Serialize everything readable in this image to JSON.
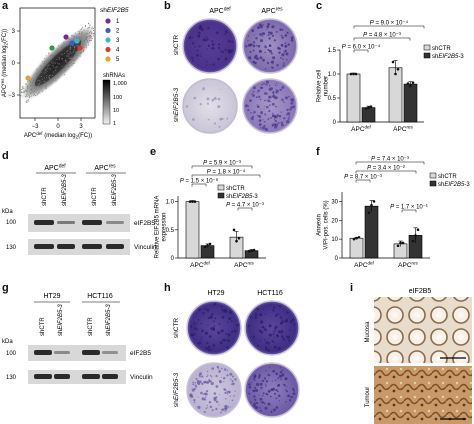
{
  "panels": {
    "a": {
      "label": "a",
      "yaxis": "APC",
      "yaxis_sup": "res",
      "yaxis_rest": " (median log",
      "yaxis_sub": "2",
      "yaxis_end": "(FC))",
      "xaxis": "APC",
      "xaxis_sup": "def",
      "xaxis_rest": " (median log",
      "xaxis_sub": "2",
      "xaxis_end": "(FC))",
      "ticks_x": [
        "−3",
        "0",
        "3"
      ],
      "ticks_y": [
        "−3",
        "0",
        "3"
      ],
      "legend_title_pre": "sh",
      "legend_title_gene": "EIF2B5",
      "legend_items": [
        {
          "label": "1",
          "color": "#7a2a96"
        },
        {
          "label": "2",
          "color": "#3a5fc7"
        },
        {
          "label": "3",
          "color": "#3db6d6"
        },
        {
          "label": "4",
          "color": "#d93b2b"
        },
        {
          "label": "5",
          "color": "#f0a020"
        }
      ],
      "colorbar_title": "shRNAs",
      "colorbar_ticks": [
        "1,000",
        "100",
        "10",
        "1"
      ]
    },
    "b": {
      "label": "b",
      "col1": "APC",
      "col1_sup": "def",
      "col2": "APC",
      "col2_sup": "res",
      "row1": "shCTR",
      "row2_pre": "sh",
      "row2_gene": "EIF2B5-3"
    },
    "c": {
      "label": "c",
      "ylabel": "Relative cell number",
      "yticks": [
        "0",
        "0.5",
        "1.0",
        "1.5"
      ],
      "groups": [
        {
          "name": "APC",
          "sup": "def"
        },
        {
          "name": "APC",
          "sup": "res"
        }
      ],
      "legend": [
        "shCTR",
        "shEIF2B5-3"
      ],
      "pvals": [
        "P = 6.0 × 10⁻⁴",
        "P = 4.8 × 10⁻³",
        "P = 9.0 × 10⁻⁴"
      ]
    },
    "d": {
      "label": "d",
      "group1": "APC",
      "group1_sup": "def",
      "group2": "APC",
      "group2_sup": "res",
      "lanes": [
        "shCTR",
        "shEIF2B5-3",
        "shCTR",
        "shEIF2B5-3"
      ],
      "kda": "kDa",
      "mw": [
        "100",
        "130"
      ],
      "bands": [
        "eIF2B5",
        "Vinculin"
      ]
    },
    "e": {
      "label": "e",
      "ylabel": "Relative EIF2B5 mRNA expression",
      "yticks": [
        "0",
        "0.5",
        "1.0"
      ],
      "groups": [
        {
          "name": "APC",
          "sup": "def"
        },
        {
          "name": "APC",
          "sup": "res"
        }
      ],
      "legend": [
        "shCTR",
        "shEIF2B5-3"
      ],
      "pvals": [
        "P = 5.9 × 10⁻³",
        "P = 1.8 × 10⁻⁴",
        "P = 1.5 × 10⁻⁶",
        "P = 4.7 × 10⁻³"
      ]
    },
    "f": {
      "label": "f",
      "ylabel": "Annexin V/PI-pos. cells (%)",
      "yticks": [
        "0",
        "10",
        "20",
        "30"
      ],
      "groups": [
        {
          "name": "APC",
          "sup": "def"
        },
        {
          "name": "APC",
          "sup": "res"
        }
      ],
      "legend": [
        "shCTR",
        "shEIF2B5-3"
      ],
      "pvals": [
        "P = 7.4 × 10⁻³",
        "P = 3.4 × 10⁻²",
        "P = 8.7 × 10⁻³",
        "P = 1.7 × 10⁻¹"
      ]
    },
    "g": {
      "label": "g",
      "group1": "HT29",
      "group2": "HCT116",
      "lanes": [
        "shCTR",
        "shEIF2B5-3",
        "shCTR",
        "shEIF2B5-3"
      ],
      "kda": "kDa",
      "mw": [
        "100",
        "130"
      ],
      "bands": [
        "eIF2B5",
        "Vinculin"
      ]
    },
    "h": {
      "label": "h",
      "col1": "HT29",
      "col2": "HCT116",
      "row1": "shCTR",
      "row2_pre": "sh",
      "row2_gene": "EIF2B5-3"
    },
    "i": {
      "label": "i",
      "title": "eIF2B5",
      "row1": "Mucosa",
      "row2": "Tumour"
    }
  },
  "chart_data": [
    {
      "panel": "c",
      "type": "bar",
      "categories": [
        "APCdef",
        "APCres"
      ],
      "series": [
        {
          "name": "shCTR",
          "values": [
            1.0,
            1.13
          ],
          "color": "#d8d8d8"
        },
        {
          "name": "shEIF2B5-3",
          "values": [
            0.3,
            0.79
          ],
          "color": "#333333"
        }
      ],
      "ylabel": "Relative cell number",
      "ylim": [
        0,
        1.5
      ]
    },
    {
      "panel": "e",
      "type": "bar",
      "categories": [
        "APCdef",
        "APCres"
      ],
      "series": [
        {
          "name": "shCTR",
          "values": [
            1.0,
            0.37
          ],
          "color": "#d8d8d8"
        },
        {
          "name": "shEIF2B5-3",
          "values": [
            0.22,
            0.13
          ],
          "color": "#333333"
        }
      ],
      "ylabel": "Relative EIF2B5 mRNA expression",
      "ylim": [
        0,
        1.1
      ]
    },
    {
      "panel": "f",
      "type": "bar",
      "categories": [
        "APCdef",
        "APCres"
      ],
      "series": [
        {
          "name": "shCTR",
          "values": [
            10.5,
            7.5
          ],
          "color": "#d8d8d8"
        },
        {
          "name": "shEIF2B5-3",
          "values": [
            27.5,
            12.0
          ],
          "color": "#333333"
        }
      ],
      "ylabel": "Annexin V/PI-pos. cells (%)",
      "ylim": [
        0,
        35
      ]
    }
  ]
}
